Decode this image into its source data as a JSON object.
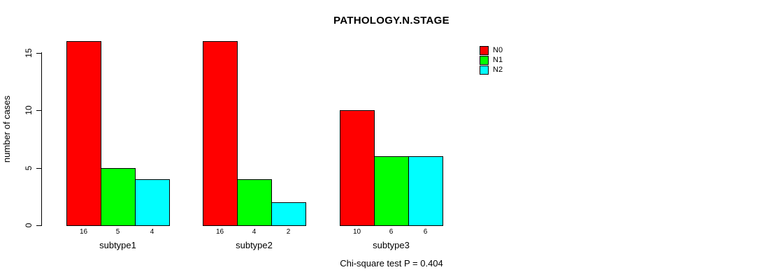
{
  "chart_data": {
    "type": "bar",
    "title": "PATHOLOGY.N.STAGE",
    "xlabel": "",
    "ylabel": "number of cases",
    "categories": [
      "subtype1",
      "subtype2",
      "subtype3"
    ],
    "series": [
      {
        "name": "N0",
        "color": "#ff0000",
        "values": [
          16,
          16,
          10
        ]
      },
      {
        "name": "N1",
        "color": "#00ff00",
        "values": [
          5,
          4,
          6
        ]
      },
      {
        "name": "N2",
        "color": "#00ffff",
        "values": [
          4,
          2,
          6
        ]
      }
    ],
    "bar_value_labels": [
      [
        "16",
        "5",
        "4"
      ],
      [
        "16",
        "4",
        "2"
      ],
      [
        "10",
        "6",
        "6"
      ]
    ],
    "yticks": [
      "0",
      "5",
      "10",
      "15"
    ],
    "ylim": [
      0,
      16
    ],
    "grid": false,
    "legend_position": "top-right",
    "annotation": "Chi-square test P = 0.404"
  }
}
